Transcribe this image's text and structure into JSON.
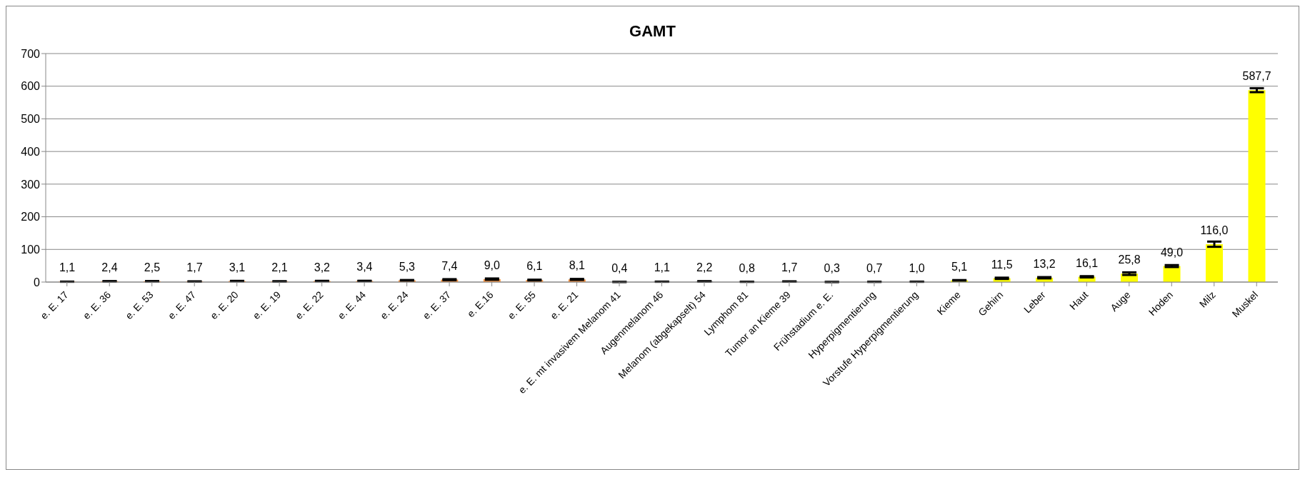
{
  "chart_data": {
    "type": "bar",
    "title": "GAMT",
    "categories": [
      "e. E. 17",
      "e. E. 36",
      "e. E. 53",
      "e. E. 47",
      "e. E. 20",
      "e. E. 19",
      "e. E. 22",
      "e. E. 44",
      "e. E. 24",
      "e. E. 37",
      "e. E.16",
      "e. E. 55",
      "e. E. 21",
      "e. E. mt invasivem Melanom 41",
      "Augenmelanom 46",
      "Melanom (abgekapselt) 54",
      "Lymphom 81",
      "Tumor an Kieme 39",
      "Frühstadium e. E.",
      "Hyperpigmentierung",
      "Vorstufe Hyperpigmentierung",
      "Kieme",
      "Gehirn",
      "Leber",
      "Haut",
      "Auge",
      "Hoden",
      "Milz",
      "Muskel"
    ],
    "values": [
      1.1,
      2.4,
      2.5,
      1.7,
      3.1,
      2.1,
      3.2,
      3.4,
      5.3,
      7.4,
      9.0,
      6.1,
      8.1,
      0.4,
      1.1,
      2.2,
      0.8,
      1.7,
      0.3,
      0.7,
      1.0,
      5.1,
      11.5,
      13.2,
      16.1,
      25.8,
      49.0,
      116.0,
      587.7
    ],
    "value_labels": [
      "1,1",
      "2,4",
      "2,5",
      "1,7",
      "3,1",
      "2,1",
      "3,2",
      "3,4",
      "5,3",
      "7,4",
      "9,0",
      "6,1",
      "8,1",
      "0,4",
      "1,1",
      "2,2",
      "0,8",
      "1,7",
      "0,3",
      "0,7",
      "1,0",
      "5,1",
      "11,5",
      "13,2",
      "16,1",
      "25,8",
      "49,0",
      "116,0",
      "587,7"
    ],
    "errors": [
      0.3,
      0.5,
      0.5,
      0.4,
      0.6,
      0.4,
      0.6,
      0.6,
      1,
      1.5,
      2,
      1.2,
      1.5,
      0.2,
      0.3,
      0.5,
      0.3,
      0.4,
      0.1,
      0.2,
      0.3,
      1,
      2,
      2,
      2,
      4,
      3,
      8,
      6
    ],
    "colors": [
      "#f79646",
      "#f79646",
      "#f79646",
      "#f79646",
      "#f79646",
      "#f79646",
      "#f79646",
      "#f79646",
      "#f79646",
      "#f79646",
      "#f79646",
      "#f79646",
      "#f79646",
      "#7f7f7f",
      "#7f7f7f",
      "#7f7f7f",
      "#7f7f7f",
      "#7f7f7f",
      "#7f7f7f",
      "#7f7f7f",
      "#7f7f7f",
      "#ffff00",
      "#ffff00",
      "#ffff00",
      "#ffff00",
      "#ffff00",
      "#ffff00",
      "#ffff00",
      "#ffff00"
    ],
    "ylim": [
      0,
      700
    ],
    "yticks": [
      0,
      100,
      200,
      300,
      400,
      500,
      600,
      700
    ],
    "grid": "y",
    "legend": false
  }
}
